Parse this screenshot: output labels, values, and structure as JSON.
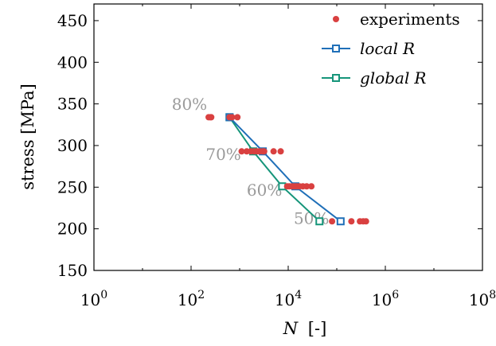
{
  "chart_data": {
    "type": "scatter",
    "xlabel_var": "N",
    "xlabel_unit": "[-]",
    "ylabel": "stress [MPa]",
    "x_scale": "log",
    "xlim": [
      1,
      100000000
    ],
    "ylim": [
      150,
      470
    ],
    "x_ticks": [
      {
        "value": 1,
        "base": "10",
        "exp": "0"
      },
      {
        "value": 100,
        "base": "10",
        "exp": "2"
      },
      {
        "value": 10000,
        "base": "10",
        "exp": "4"
      },
      {
        "value": 1000000,
        "base": "10",
        "exp": "6"
      },
      {
        "value": 100000000,
        "base": "10",
        "exp": "8"
      }
    ],
    "y_ticks": [
      150,
      200,
      250,
      300,
      350,
      400,
      450
    ],
    "grid": false,
    "legend_position": "top-right",
    "colors": {
      "experiments": "#d94040",
      "local": "#1f6fb8",
      "global": "#16957a",
      "annotation": "#9a9a9a"
    },
    "experiments": {
      "name": "experiments",
      "points": [
        [
          230,
          334
        ],
        [
          250,
          334
        ],
        [
          260,
          334
        ],
        [
          620,
          334
        ],
        [
          700,
          334
        ],
        [
          900,
          334
        ],
        [
          1100,
          293
        ],
        [
          1400,
          293
        ],
        [
          1700,
          293
        ],
        [
          2000,
          293
        ],
        [
          2300,
          293
        ],
        [
          2600,
          293
        ],
        [
          3000,
          293
        ],
        [
          3200,
          293
        ],
        [
          5000,
          293
        ],
        [
          7000,
          293
        ],
        [
          9500,
          251
        ],
        [
          10500,
          251
        ],
        [
          12000,
          251
        ],
        [
          13500,
          251
        ],
        [
          15000,
          251
        ],
        [
          17000,
          251
        ],
        [
          20000,
          251
        ],
        [
          24000,
          251
        ],
        [
          30000,
          251
        ],
        [
          80000,
          209
        ],
        [
          200000,
          209
        ],
        [
          300000,
          209
        ],
        [
          350000,
          209
        ],
        [
          400000,
          209
        ]
      ]
    },
    "series": [
      {
        "name": "local R",
        "name_var": "local",
        "name_sym": "R",
        "points": [
          [
            620,
            334
          ],
          [
            3000,
            293
          ],
          [
            14000,
            251
          ],
          [
            120000,
            209
          ]
        ]
      },
      {
        "name": "global R",
        "name_var": "global",
        "name_sym": "R",
        "points": [
          [
            620,
            334
          ],
          [
            1900,
            293
          ],
          [
            7500,
            251
          ],
          [
            44000,
            209
          ]
        ]
      }
    ],
    "annotations": [
      {
        "text": "80%",
        "x": 40,
        "y": 343
      },
      {
        "text": "70%",
        "x": 200,
        "y": 283
      },
      {
        "text": "60%",
        "x": 1400,
        "y": 240
      },
      {
        "text": "50%",
        "x": 13000,
        "y": 206
      }
    ]
  }
}
